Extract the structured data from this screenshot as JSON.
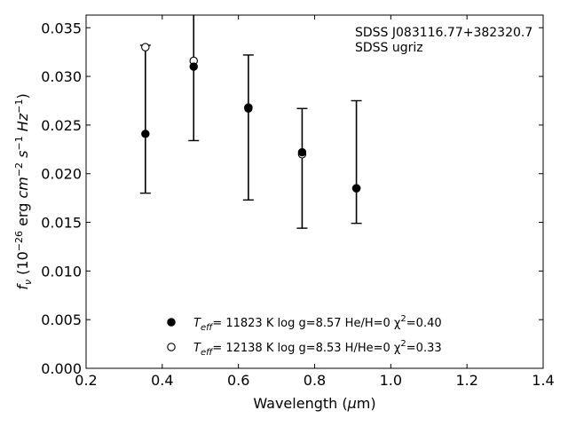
{
  "chart_data": {
    "type": "scatter",
    "xlabel": "Wavelength (μm)",
    "ylabel": "f_ν (10^-26 erg cm^-2 s^-1 Hz^-1)",
    "xlim": [
      0.2,
      1.4
    ],
    "ylim": [
      0.0,
      0.0363
    ],
    "x_ticks": [
      "0.2",
      "0.4",
      "0.6",
      "0.8",
      "1.0",
      "1.2",
      "1.4"
    ],
    "y_ticks": [
      "0.000",
      "0.005",
      "0.010",
      "0.015",
      "0.020",
      "0.025",
      "0.030",
      "0.035"
    ],
    "grid": false,
    "annotation": [
      "SDSS J083116.77+382320.7",
      "SDSS ugriz"
    ],
    "observed": {
      "x": [
        0.3557,
        0.4825,
        0.6261,
        0.7672,
        0.9097
      ],
      "y": [
        0.0241,
        0.031,
        0.0267,
        0.0222,
        0.0185
      ],
      "err_low": [
        0.018,
        0.0234,
        0.0173,
        0.0144,
        0.0149
      ],
      "err_high": [
        0.0332,
        0.0365,
        0.0322,
        0.0267,
        0.0275
      ]
    },
    "series": [
      {
        "marker": "filled",
        "label_parts": [
          "T",
          "eff",
          "= 11823 K  log g=8.57  He/H=0  χ",
          "2",
          "=0.40"
        ],
        "x": [
          0.3557,
          0.4825,
          0.6261,
          0.7672,
          0.9097
        ],
        "y": [
          0.0241,
          0.031,
          0.0267,
          0.0222,
          0.0185
        ]
      },
      {
        "marker": "open",
        "label_parts": [
          "T",
          "eff",
          "= 12138 K  log g=8.53  H/He=0  χ",
          "2",
          "=0.33"
        ],
        "x": [
          0.3557,
          0.4825,
          0.6261,
          0.7672,
          0.9097
        ],
        "y": [
          0.033,
          0.0316,
          0.0268,
          0.022,
          0.0185
        ]
      }
    ],
    "legend_position": "lower-center",
    "colors": {
      "marker": "#000000",
      "open_fill": "#ffffff"
    }
  }
}
